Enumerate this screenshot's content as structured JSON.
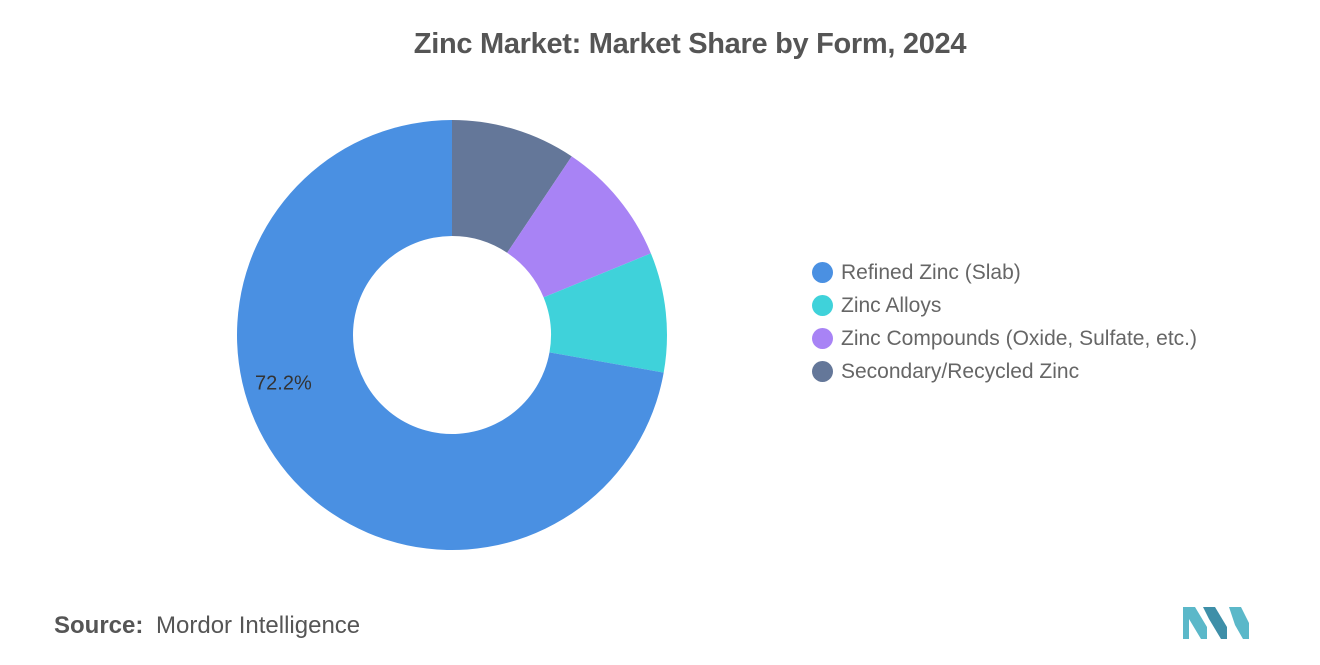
{
  "chart_data": {
    "type": "pie",
    "title": "Zinc Market: Market Share by Form, 2024",
    "categories": [
      "Refined Zinc (Slab)",
      "Zinc Alloys",
      "Zinc Compounds (Oxide, Sulfate, etc.)",
      "Secondary/Recycled Zinc"
    ],
    "values": [
      72.2,
      9.0,
      9.4,
      9.4
    ],
    "colors": [
      "#4A90E2",
      "#3FD2DA",
      "#A883F5",
      "#647799"
    ],
    "data_labels": [
      "72.2%",
      "",
      "",
      ""
    ],
    "legend_position": "right",
    "donut": true
  },
  "legend": {
    "items": [
      {
        "label": "Refined Zinc (Slab)",
        "color": "#4A90E2"
      },
      {
        "label": "Zinc Alloys",
        "color": "#3FD2DA"
      },
      {
        "label": "Zinc Compounds (Oxide, Sulfate, etc.)",
        "color": "#A883F5"
      },
      {
        "label": "Secondary/Recycled Zinc",
        "color": "#647799"
      }
    ]
  },
  "source": {
    "label": "Source:",
    "text": "Mordor Intelligence"
  },
  "logo": {
    "name": "mordor-intelligence-logo",
    "color": "#5BB8C9"
  }
}
